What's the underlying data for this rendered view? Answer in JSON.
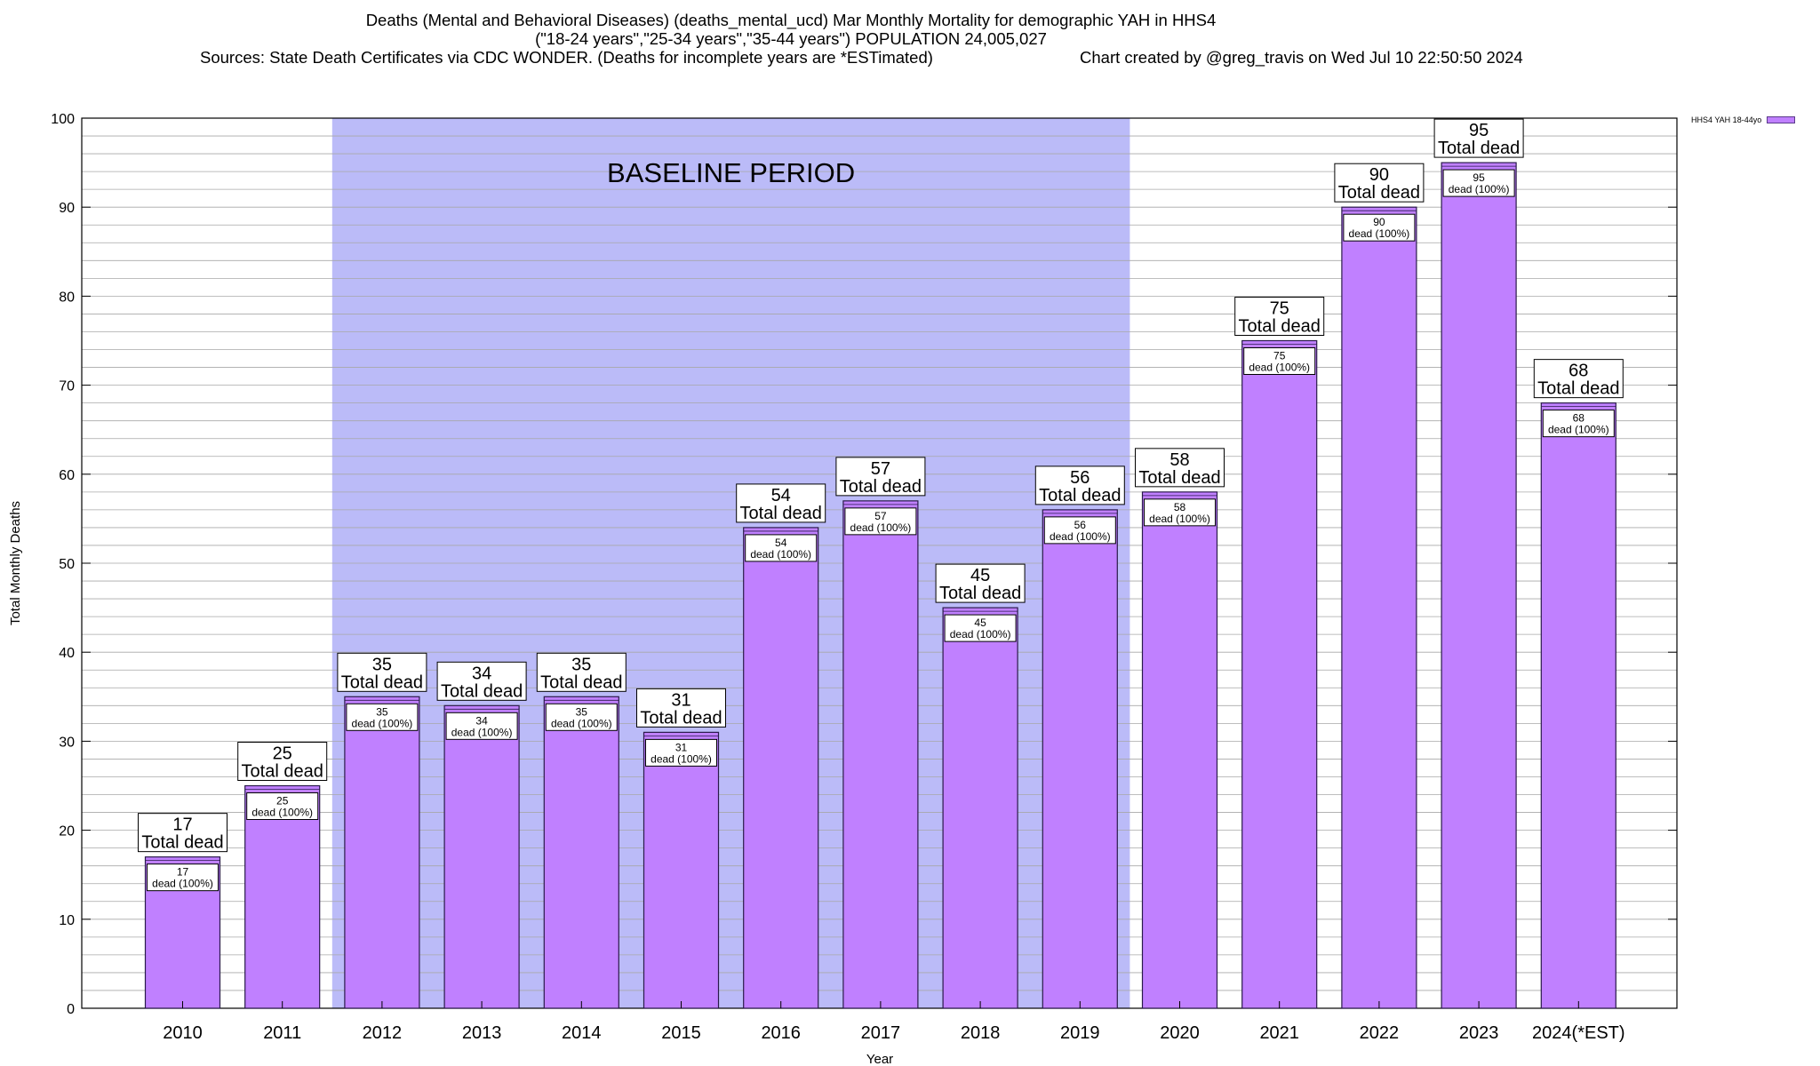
{
  "titles": {
    "line1": "Deaths (Mental and Behavioral Diseases) (deaths_mental_ucd) Mar Monthly Mortality for demographic YAH in HHS4",
    "line2": "(\"18-24 years\",\"25-34 years\",\"35-44 years\") POPULATION 24,005,027",
    "sources": "Sources: State Death Certificates via CDC WONDER. (Deaths for incomplete years are *ESTimated)",
    "credit": "Chart created by @greg_travis on Wed Jul 10 22:50:50 2024"
  },
  "legend": {
    "label": "HHS4 YAH 18-44yo",
    "color": "#c080ff"
  },
  "chart_data": {
    "type": "bar",
    "title": "Deaths (Mental and Behavioral Diseases) (deaths_mental_ucd) Mar Monthly Mortality for demographic YAH in HHS4",
    "xlabel": "Year",
    "ylabel": "Total Monthly Deaths",
    "ylim": [
      0,
      100
    ],
    "yticks": [
      0,
      10,
      20,
      30,
      40,
      50,
      60,
      70,
      80,
      90,
      100
    ],
    "grid": "horizontal minor",
    "legend_position": "top-right",
    "categories": [
      "2010",
      "2011",
      "2012",
      "2013",
      "2014",
      "2015",
      "2016",
      "2017",
      "2018",
      "2019",
      "2020",
      "2021",
      "2022",
      "2023",
      "2024(*EST)"
    ],
    "series": [
      {
        "name": "HHS4 YAH 18-44yo",
        "values": [
          17,
          25,
          35,
          34,
          35,
          31,
          54,
          57,
          45,
          56,
          58,
          75,
          90,
          95,
          68
        ]
      }
    ],
    "total_label": "Total dead",
    "inner_label": "dead (100%)",
    "baseline": {
      "label": "BASELINE PERIOD",
      "from": "2012",
      "to": "2019"
    },
    "colors": {
      "bar": "#c080ff",
      "bar_edge": "#2a1a4a",
      "baseline": "#bbbbf8"
    }
  }
}
